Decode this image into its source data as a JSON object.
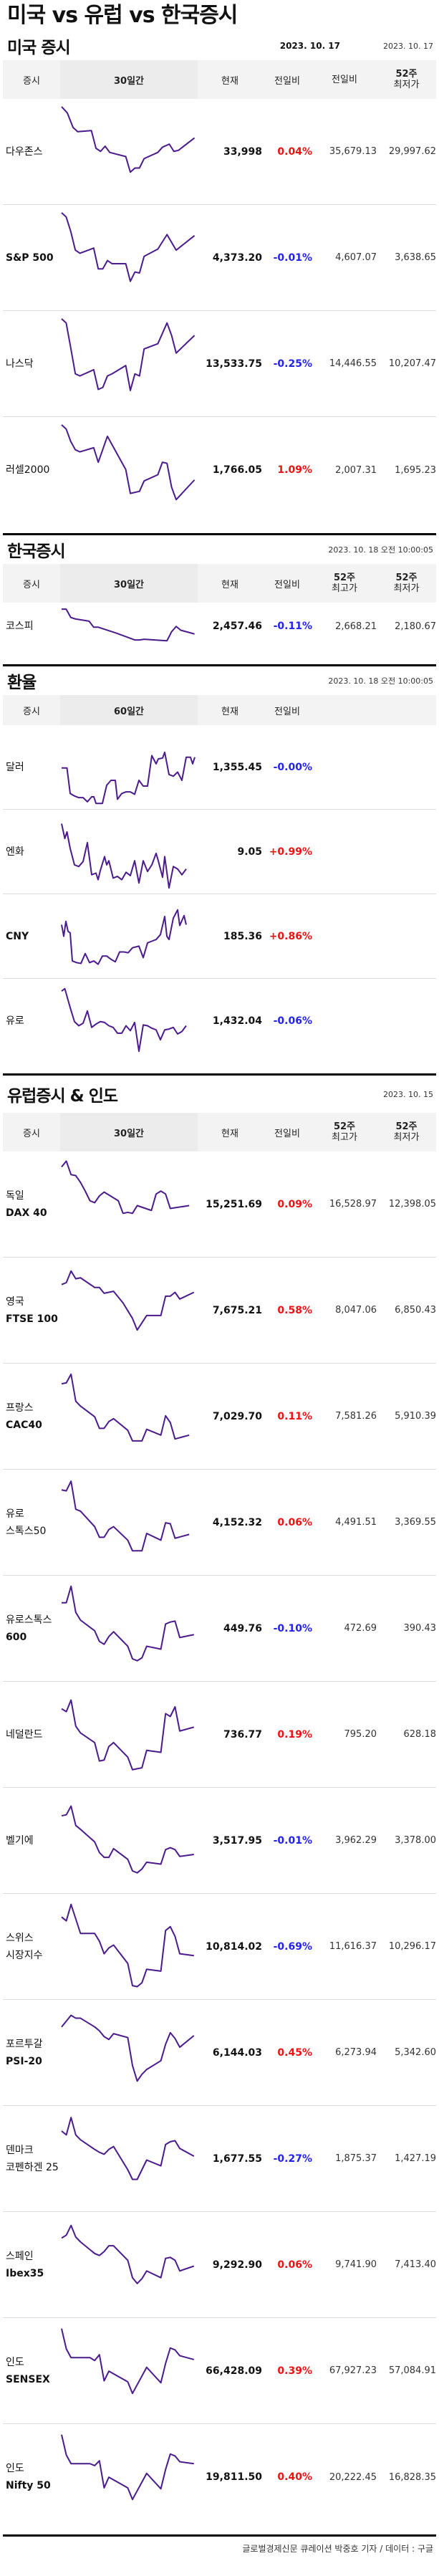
{
  "title": "미국 vs 유럽 vs 한국증시",
  "colors": {
    "up": "#ee1111",
    "down": "#2222ee",
    "spark": "#4b1a8c"
  },
  "us": {
    "title": "미국 증시",
    "date_bold": "2023. 10. 17",
    "date": "2023. 10. 17",
    "headers": {
      "name": "증시",
      "spark": "30일간",
      "cur": "현재",
      "chg": "전일비",
      "hi": "전일비",
      "lo_1": "52주",
      "lo_2": "최저가"
    },
    "rows": [
      {
        "name": "다우존스",
        "en": "",
        "cur": "33,998",
        "chg": "0.04%",
        "dir": "up",
        "hi": "35,679.13",
        "lo": "29,997.62",
        "spark": "0,2 5,8 10,22 14,26 26,25 30,42 34,45 38,40 42,46 56,50 60,65 64,61 68,61 72,52 84,46 88,41 94,38 98,45 102,44 116,32"
      },
      {
        "name": "S&P 500",
        "en": "",
        "cur": "4,373.20",
        "chg": "-0.01%",
        "dir": "down",
        "hi": "4,607.07",
        "lo": "3,638.65",
        "spark": "0,2 4,6 8,20 12,38 16,41 28,36 32,56 36,56 40,48 44,51 56,51 60,68 64,59 68,60 72,44 84,37 92,23 100,38 116,24"
      },
      {
        "name": "나스닥",
        "en": "",
        "cur": "13,533.75",
        "chg": "-0.25%",
        "dir": "down",
        "hi": "14,446.55",
        "lo": "10,207.47",
        "spark": "0,2 4,6 8,30 12,55 16,57 28,51 32,70 36,68 40,57 44,55 56,47 60,71 64,55 68,57 72,31 84,26 92,6 96,18 100,35 116,18"
      },
      {
        "name": "러셀2000",
        "en": "",
        "cur": "1,766.05",
        "chg": "1.09%",
        "dir": "up",
        "hi": "2,007.31",
        "lo": "1,695.23",
        "spark": "0,2 4,6 8,18 12,26 16,28 28,24 32,38 40,13 56,45 60,68 68,66 72,56 84,50 88,38 92,39 96,62 100,74 116,55"
      }
    ]
  },
  "korea": {
    "title": "한국증시",
    "date": "2023. 10. 18 오전 10:00:05",
    "headers": {
      "name": "증시",
      "spark": "30일간",
      "cur": "현재",
      "chg": "전일비",
      "hi_1": "52주",
      "hi_2": "최고가",
      "lo_1": "52주",
      "lo_2": "최저가"
    },
    "rows": [
      {
        "name": "코스피",
        "en": "",
        "cur": "2,457.46",
        "chg": "-0.11%",
        "dir": "down",
        "hi": "2,668.21",
        "lo": "2,180.67",
        "spark": "0,2 4,2 8,13 12,15 24,18 28,26 32,26 48,34 64,43 68,43 72,42 92,44 96,32 100,25 104,30 116,35"
      }
    ]
  },
  "fx": {
    "title": "환율",
    "date": "2023. 10. 18 오전 10:00:05",
    "headers": {
      "name": "증시",
      "spark": "60일간",
      "cur": "현재",
      "chg": "전일비"
    },
    "rows": [
      {
        "name": "달러",
        "cur": "1,355.45",
        "chg": "-0.00%",
        "dir": "down",
        "spark": "0,45 5,45 8,76 12,79 16,81 20,81 24,86 28,80 30,80 32,88 38,88 42,66 46,60 50,60 52,83 56,76 60,74 64,74 68,77 72,60 76,67 80,67 84,30 88,40 90,34 94,33 96,26 100,53 104,55 108,50 112,60 116,32 120,32 122,40 124,32"
      },
      {
        "name": "엔화",
        "cur": "9.05",
        "chg": "+0.99%",
        "dir": "up",
        "spark": "0,10 3,28 5,20 8,40 12,60 16,62 20,56 24,33 28,72 32,70 34,78 36,67 40,50 42,60 44,55 48,76 52,74 56,78 60,69 64,73 68,55 72,82 76,55 80,68 84,60 88,46 90,55 94,75 96,50 100,88 104,62 108,65 112,72 116,65"
      },
      {
        "name": "CNY",
        "cur": "185.36",
        "chg": "+0.86%",
        "dir": "up",
        "spark": "0,30 2,44 4,26 6,38 8,40 10,74 14,76 18,77 22,65 26,76 30,74 34,78 38,68 42,68 46,72 50,75 54,63 58,63 62,64 66,58 72,56 76,70 80,52 84,50 88,48 92,42 96,20 98,44 100,48 104,22 108,12 110,31 114,19 116,30"
      },
      {
        "name": "유로",
        "cur": "1,432.04",
        "chg": "-0.06%",
        "dir": "down",
        "spark": "0,8 3,5 8,28 12,45 16,50 20,47 24,32 28,52 32,48 36,45 40,46 44,50 48,52 52,59 56,59 60,50 64,56 68,46 72,81 76,49 80,50 84,53 88,55 92,67 96,55 100,54 104,52 108,60 112,57 116,50"
      }
    ]
  },
  "europe": {
    "title": "유럽증시 & 인도",
    "date": "2023. 10. 15",
    "headers": {
      "name": "증시",
      "spark": "30일간",
      "cur": "현재",
      "chg": "전일비",
      "hi_1": "52주",
      "hi_2": "최고가",
      "lo_1": "52주",
      "lo_2": "최저가"
    },
    "rows": [
      {
        "name": "독일",
        "en": "DAX 40",
        "cur": "15,251.69",
        "chg": "0.09%",
        "dir": "up",
        "hi": "16,528.97",
        "lo": "12,398.05",
        "spark": "0,10 4,4 8,18 12,19 16,26 20,35 24,45 28,47 32,40 36,36 48,45 52,58 56,57 60,58 64,50 76,55 80,38 84,35 88,38 92,53 108,50"
      },
      {
        "name": "영국",
        "en": "FTSE 100",
        "cur": "7,675.21",
        "chg": "0.58%",
        "dir": "up",
        "hi": "8,047.06",
        "lo": "6,850.43",
        "spark": "0,22 4,20 8,8 12,16 16,15 28,25 32,25 36,31 44,29 52,41 60,57 64,69 72,54 84,54 88,34 92,34 96,30 100,37 112,30"
      },
      {
        "name": "프랑스",
        "en": "CAC40",
        "cur": "7,029.70",
        "chg": "0.11%",
        "dir": "up",
        "hi": "7,581.26",
        "lo": "5,910.39",
        "spark": "0,15 4,14 8,5 12,33 16,38 28,49 32,61 36,61 40,54 44,51 56,63 60,74 64,74 68,74 72,62 84,68 88,48 92,55 96,72 108,68"
      },
      {
        "name": "유로",
        "en": "스톡스50",
        "cur": "4,152.32",
        "chg": "0.06%",
        "dir": "up",
        "hi": "4,491.51",
        "lo": "3,369.55",
        "spark": "0,15 4,16 8,6 12,35 16,37 28,53 32,64 36,64 40,56 44,53 56,67 60,78 64,78 68,78 72,60 84,67 88,49 92,50 96,65 108,61"
      },
      {
        "name": "유로스톡스",
        "en": "600",
        "cur": "449.76",
        "chg": "-0.10%",
        "dir": "down",
        "hi": "472.69",
        "lo": "390.43",
        "spark": "0,22 4,22 8,5 12,32 16,40 28,51 32,62 36,65 40,57 44,52 56,67 60,80 64,82 68,79 72,67 84,70 88,44 92,42 96,41 100,58 112,55"
      },
      {
        "name": "네덜란드",
        "en": "",
        "cur": "736.77",
        "chg": "0.19%",
        "dir": "up",
        "hi": "795.20",
        "lo": "628.18",
        "spark": "0,22 4,25 8,13 12,40 16,47 28,57 32,76 36,75 40,61 44,57 56,72 60,85 64,84 68,83 72,65 84,67 88,27 92,30 96,20 100,45 112,41"
      },
      {
        "name": "벨기에",
        "en": "",
        "cur": "3,517.95",
        "chg": "-0.01%",
        "dir": "down",
        "hi": "3,962.29",
        "lo": "3,378.00",
        "spark": "0,23 4,22 8,13 12,33 16,37 28,50 32,61 36,66 40,66 44,57 56,68 60,80 64,82 68,78 72,71 84,73 88,58 92,56 96,58 100,65 112,63"
      },
      {
        "name": "스위스",
        "en": "시장지수",
        "cur": "10,814.02",
        "chg": "-0.69%",
        "dir": "down",
        "hi": "11,616.37",
        "lo": "10,296.17",
        "spark": "0,18 4,22 8,5 12,20 16,35 28,35 32,43 36,56 40,50 44,47 56,66 60,89 64,90 68,86 72,72 84,74 88,32 92,28 96,38 100,56 112,58"
      },
      {
        "name": "포르투갈",
        "en": "PSI-20",
        "cur": "6,144.03",
        "chg": "0.45%",
        "dir": "up",
        "hi": "6,273.94",
        "lo": "5,342.60",
        "spark": "0,22 4,16 8,10 12,13 16,13 28,22 32,26 36,32 40,35 44,29 56,33 60,62 64,78 68,71 72,66 84,57 88,40 92,28 96,34 100,43 112,31"
      },
      {
        "name": "덴마크",
        "en": "코펜하겐 25",
        "cur": "1,677.55",
        "chg": "-0.27%",
        "dir": "down",
        "hi": "1,875.37",
        "lo": "1,427.19",
        "spark": "0,20 4,24 8,6 12,24 16,29 28,39 32,42 36,44 40,39 44,36 56,60 60,70 64,70 68,60 72,50 84,56 88,34 92,31 96,30 100,38 112,46"
      },
      {
        "name": "스페인",
        "en": "Ibex35",
        "cur": "9,292.90",
        "chg": "0.06%",
        "dir": "up",
        "hi": "9,741.90",
        "lo": "7,413.40",
        "spark": "0,21 4,18 8,8 12,20 16,25 28,37 32,39 36,35 40,29 44,29 56,44 60,62 64,68 68,63 72,55 84,62 88,42 92,41 96,44 100,55 112,50"
      },
      {
        "name": "인도",
        "en": "SENSEX",
        "cur": "66,428.09",
        "chg": "0.39%",
        "dir": "up",
        "hi": "67,927.23",
        "lo": "57,084.91",
        "spark": "0,5 4,26 8,35 12,35 24,35 28,38 32,32 36,59 40,49 56,60 60,72 72,45 84,61 88,41 92,25 96,27 100,33 112,37"
      },
      {
        "name": "인도",
        "en": "Nifty 50",
        "cur": "19,811.50",
        "chg": "0.40%",
        "dir": "up",
        "hi": "20,222.45",
        "lo": "16,828.35",
        "spark": "0,5 4,26 8,35 12,35 24,35 28,37 32,32 36,60 40,49 56,60 60,72 72,45 84,61 88,41 92,25 96,27 100,33 112,35"
      }
    ]
  },
  "footer": "글로벌경제신문 큐레이션 박중호 기자 / 데이터 : 구글"
}
